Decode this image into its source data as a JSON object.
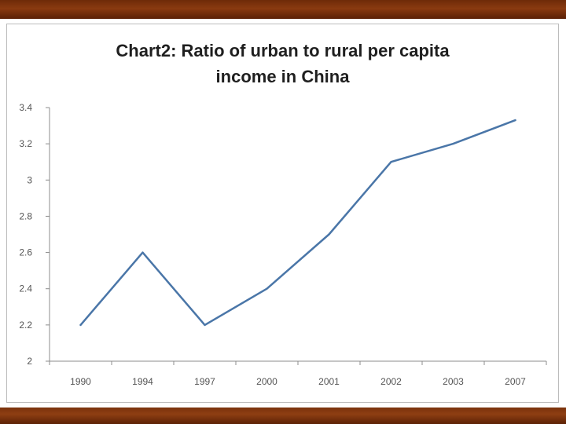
{
  "chart_data": {
    "type": "line",
    "title_line1": "Chart2: Ratio of urban to rural per capita",
    "title_line2": "income in China",
    "xlabel": "",
    "ylabel": "",
    "categories": [
      "1990",
      "1994",
      "1997",
      "2000",
      "2001",
      "2002",
      "2003",
      "2007"
    ],
    "series": [
      {
        "values": [
          2.2,
          2.6,
          2.2,
          2.4,
          2.7,
          3.1,
          3.2,
          3.33
        ]
      }
    ],
    "ylim": [
      2,
      3.4
    ],
    "yticks": [
      "2",
      "2.2",
      "2.4",
      "2.6",
      "2.8",
      "3",
      "3.2",
      "3.4"
    ],
    "grid": false,
    "legend": "none",
    "line_color": "#4a76a8"
  }
}
